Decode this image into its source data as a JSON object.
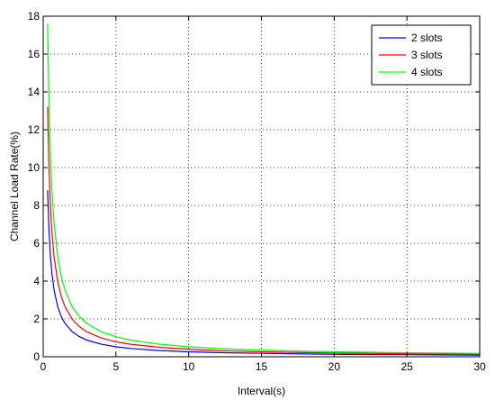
{
  "chart_data": {
    "type": "line",
    "xlabel": "Interval(s)",
    "ylabel": "Channel Load Rate(%)",
    "xlim": [
      0,
      30
    ],
    "ylim": [
      0,
      18
    ],
    "xticks": [
      0,
      5,
      10,
      15,
      20,
      25,
      30
    ],
    "yticks": [
      0,
      2,
      4,
      6,
      8,
      10,
      12,
      14,
      16,
      18
    ],
    "grid": true,
    "grid_style": "dotted",
    "legend_position": "top-right",
    "series": [
      {
        "name": "2 slots",
        "color": "#0000ff",
        "x": [
          0.3,
          0.4,
          0.5,
          0.6,
          0.75,
          1,
          1.25,
          1.5,
          2,
          2.5,
          3,
          4,
          5,
          6,
          8,
          10,
          12,
          15,
          18,
          20,
          25,
          30
        ],
        "y": [
          8.8,
          6.6,
          5.28,
          4.4,
          3.52,
          2.64,
          2.11,
          1.76,
          1.32,
          1.06,
          0.88,
          0.66,
          0.53,
          0.44,
          0.33,
          0.26,
          0.22,
          0.18,
          0.15,
          0.13,
          0.11,
          0.09
        ]
      },
      {
        "name": "3 slots",
        "color": "#ff0000",
        "x": [
          0.3,
          0.4,
          0.5,
          0.6,
          0.75,
          1,
          1.25,
          1.5,
          2,
          2.5,
          3,
          4,
          5,
          6,
          8,
          10,
          12,
          15,
          18,
          20,
          25,
          30
        ],
        "y": [
          13.2,
          9.9,
          7.92,
          6.6,
          5.28,
          3.96,
          3.17,
          2.64,
          1.98,
          1.58,
          1.32,
          0.99,
          0.79,
          0.66,
          0.5,
          0.4,
          0.33,
          0.26,
          0.22,
          0.2,
          0.16,
          0.13
        ]
      },
      {
        "name": "4 slots",
        "color": "#00ff00",
        "x": [
          0.3,
          0.4,
          0.5,
          0.6,
          0.75,
          1,
          1.25,
          1.5,
          2,
          2.5,
          3,
          4,
          5,
          6,
          8,
          10,
          12,
          15,
          18,
          20,
          25,
          30
        ],
        "y": [
          17.6,
          13.2,
          10.56,
          8.8,
          7.04,
          5.28,
          4.22,
          3.52,
          2.64,
          2.11,
          1.76,
          1.32,
          1.06,
          0.88,
          0.66,
          0.53,
          0.44,
          0.35,
          0.29,
          0.26,
          0.21,
          0.18
        ]
      }
    ]
  }
}
